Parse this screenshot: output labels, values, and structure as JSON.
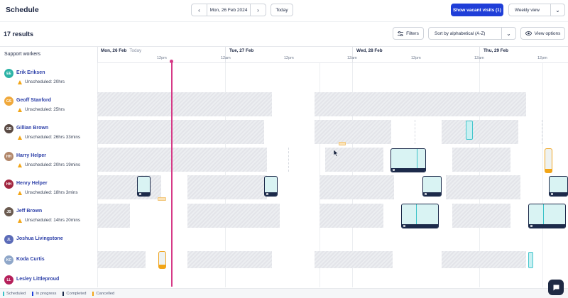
{
  "header": {
    "title": "Schedule",
    "date": "Mon, 26 Feb 2024",
    "today_label": "Today",
    "vacant_label": "Show vacant visits (1)",
    "view_label": "Weekly view"
  },
  "toolbar": {
    "results": "17 results",
    "filters_label": "Filters",
    "sort_label": "Sort by alphabetical (A-Z)",
    "view_options_label": "View options"
  },
  "grid": {
    "column_title": "Support workers",
    "days": [
      {
        "label": "Mon, 26 Feb",
        "today": "Today"
      },
      {
        "label": "Tue, 27 Feb"
      },
      {
        "label": "Wed, 28 Feb"
      },
      {
        "label": "Thu, 29 Feb"
      }
    ],
    "ticks": [
      "12pm",
      "12am",
      "12pm",
      "12am",
      "12pm",
      "12am",
      "12pm"
    ]
  },
  "workers": [
    {
      "name": "Erik Eriksen",
      "initials": "EE",
      "color": "#2bb3a6",
      "unscheduled": "Unscheduled: 20hrs"
    },
    {
      "name": "Geoff Stanford",
      "initials": "GS",
      "color": "#f0a83a",
      "unscheduled": "Unscheduled: 25hrs"
    },
    {
      "name": "Gillian Brown",
      "initials": "GB",
      "color": "#5a4a44",
      "unscheduled": "Unscheduled: 26hrs 33mins"
    },
    {
      "name": "Harry Helper",
      "initials": "HH",
      "color": "#b2876a",
      "unscheduled": "Unscheduled: 20hrs 19mins"
    },
    {
      "name": "Henry Helper",
      "initials": "HH",
      "color": "#a1263f",
      "unscheduled": "Unscheduled: 18hrs 3mins"
    },
    {
      "name": "Jeff Brown",
      "initials": "JB",
      "color": "#6a5a4f",
      "unscheduled": "Unscheduled: 14hrs 20mins"
    },
    {
      "name": "Joshua Livingstone",
      "initials": "JL",
      "color": "#5b6bb8"
    },
    {
      "name": "Koda Curtis",
      "initials": "KC",
      "color": "#8fa7c9"
    },
    {
      "name": "Lesley Littleproud",
      "initials": "LL",
      "color": "#b51f5a"
    }
  ],
  "legend": [
    {
      "label": "Scheduled",
      "color": "#39c2c8"
    },
    {
      "label": "In progress",
      "color": "#1f3ed8"
    },
    {
      "label": "Completed",
      "color": "#1c2a4a"
    },
    {
      "label": "Cancelled",
      "color": "#f2a516"
    }
  ],
  "icons": {
    "prev": "chevron-left-icon",
    "next": "chevron-right-icon",
    "filters": "sliders-icon",
    "view_options": "eye-icon",
    "chat": "chat-icon"
  }
}
